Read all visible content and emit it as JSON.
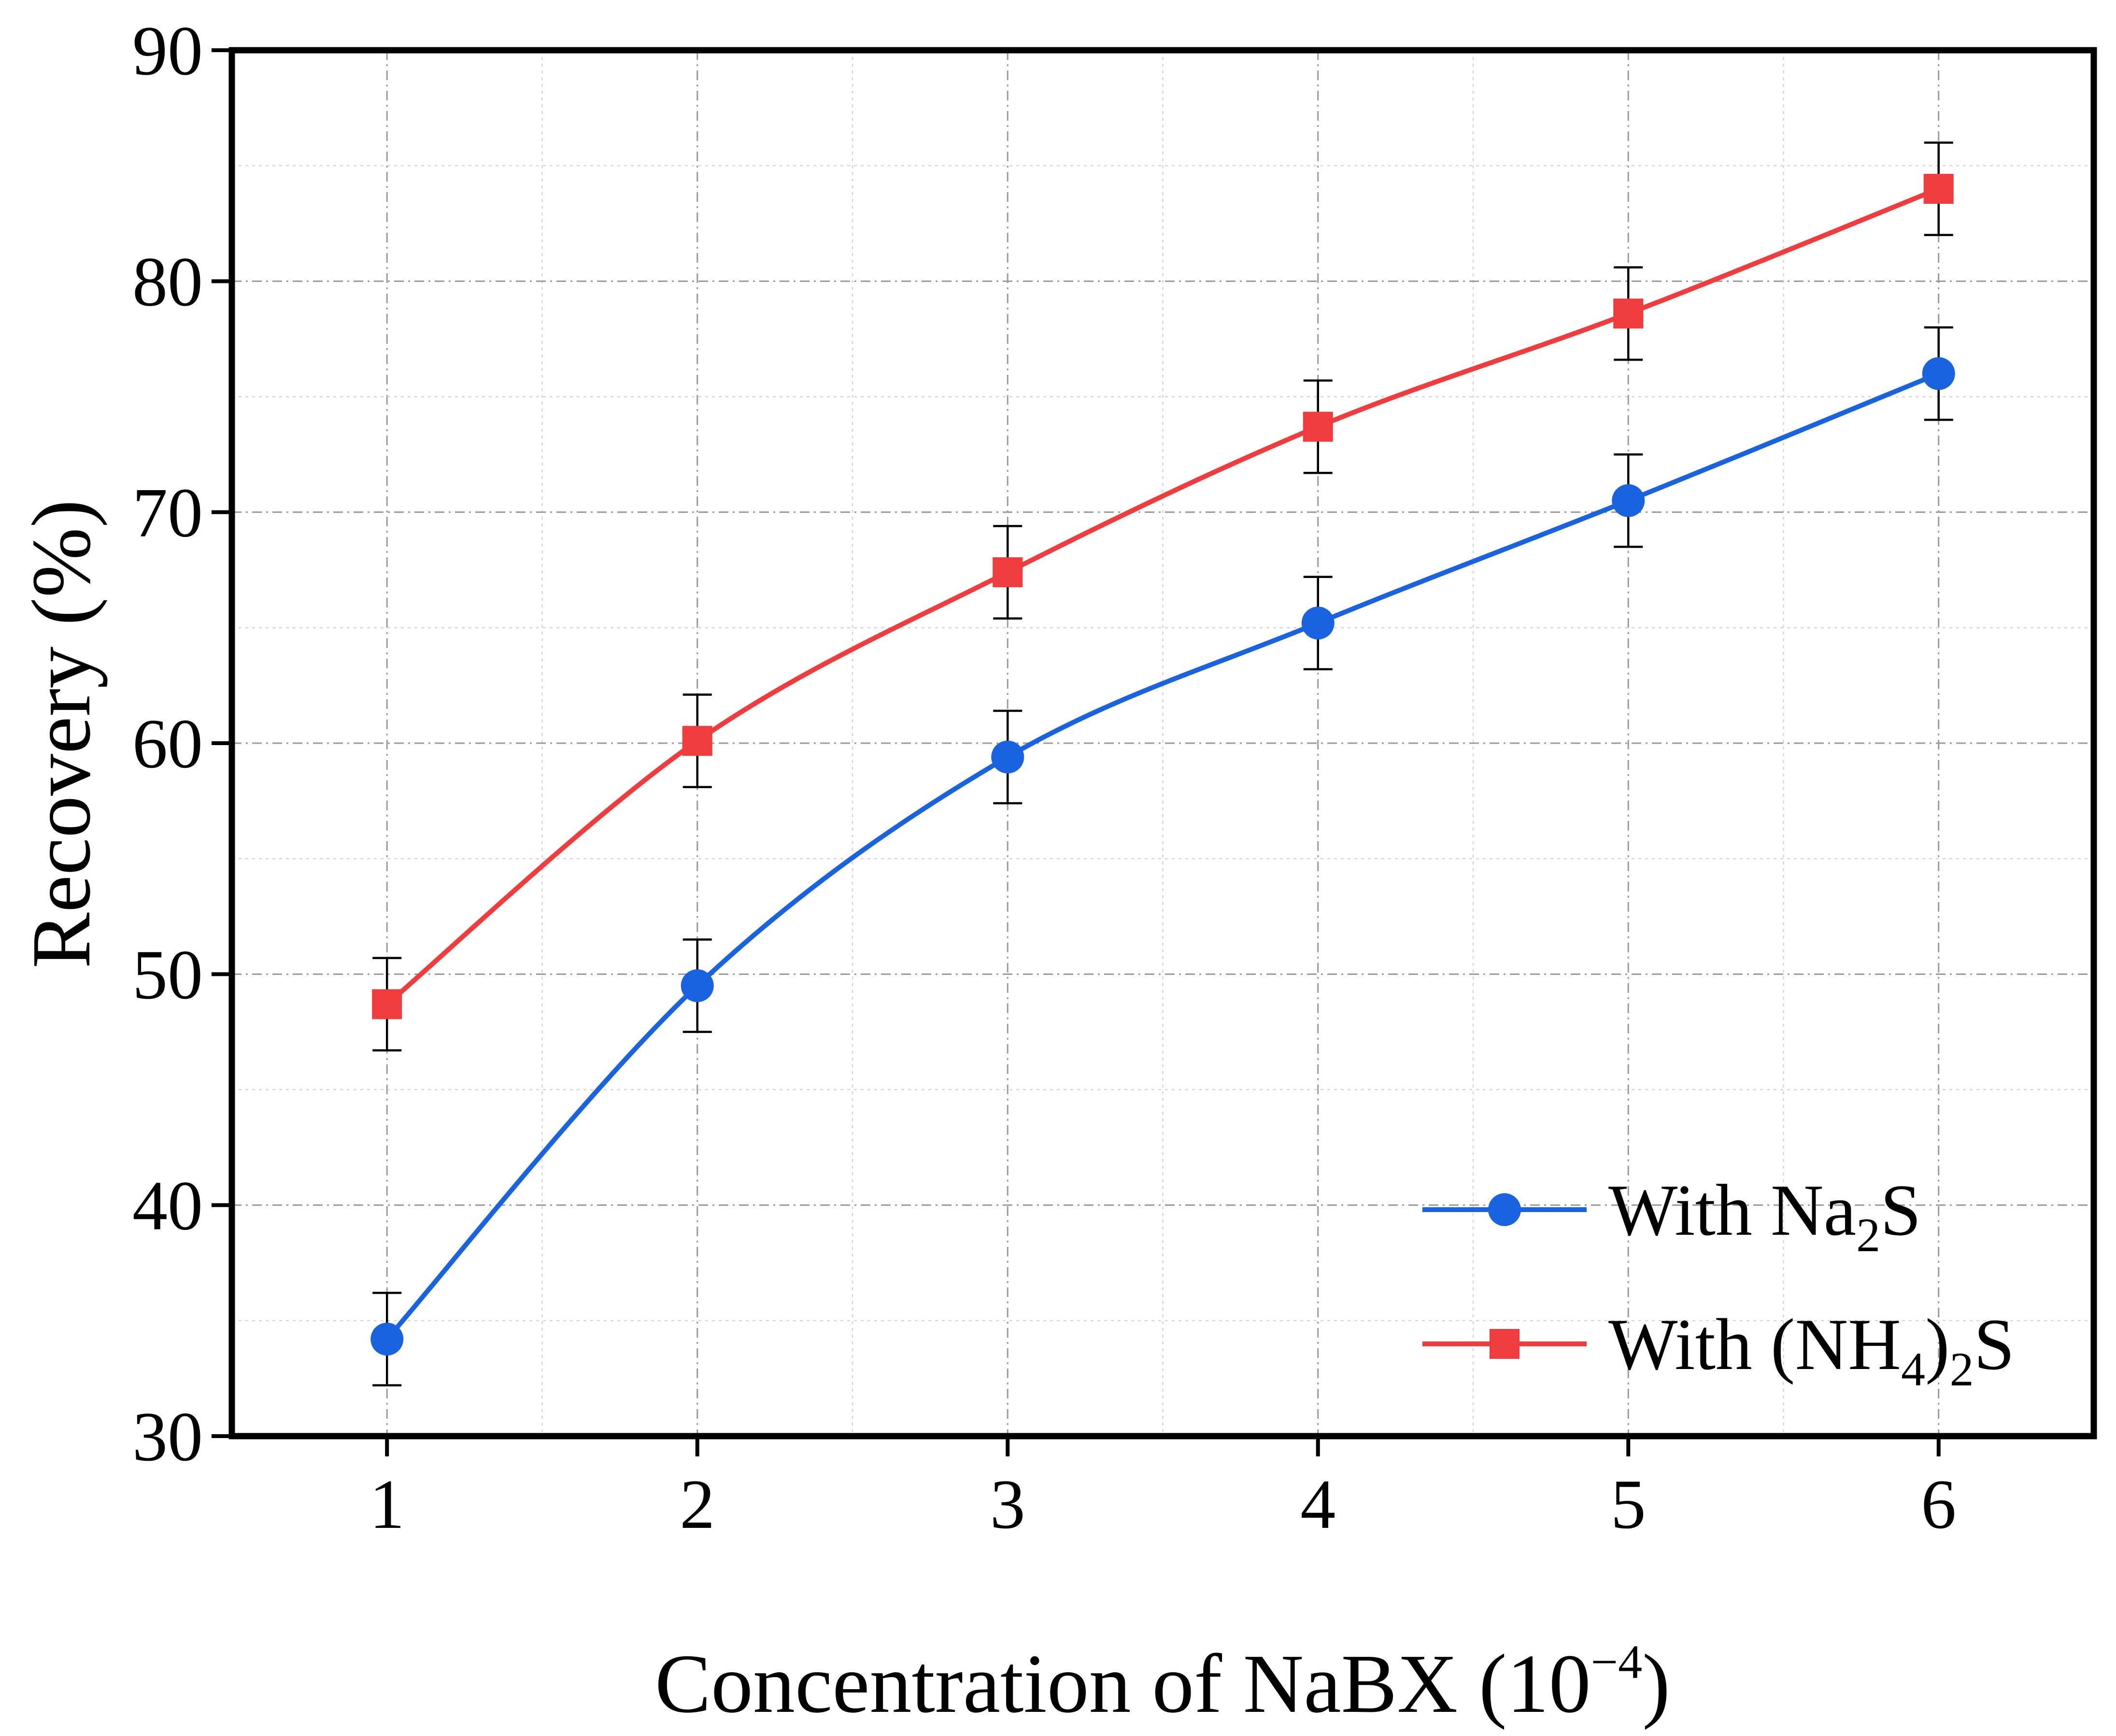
{
  "chart_data": {
    "type": "line",
    "title": "",
    "xlabel": "Concentration of NaBX (10",
    "xlabel_sup": "−4",
    "xlabel_close": ")",
    "ylabel": "Recovery (%)",
    "xlim": [
      0.5,
      6.5
    ],
    "ylim": [
      30,
      90
    ],
    "x": [
      1,
      2,
      3,
      4,
      5,
      6
    ],
    "xticks": [
      "1",
      "2",
      "3",
      "4",
      "5",
      "6"
    ],
    "yticks": [
      "30",
      "40",
      "50",
      "60",
      "70",
      "80",
      "90"
    ],
    "grid": true,
    "legend_position": "bottom-right",
    "series": [
      {
        "name": "With Na2S",
        "label_parts": [
          "With Na",
          "2",
          "S"
        ],
        "color": "#1a63e0",
        "marker": "circle",
        "values": [
          34.2,
          49.5,
          59.4,
          65.2,
          70.5,
          76.0
        ],
        "error": [
          2.0,
          2.0,
          2.0,
          2.0,
          2.0,
          2.0
        ]
      },
      {
        "name": "With (NH4)2S",
        "label_parts": [
          "With (NH",
          "4",
          ")",
          "2",
          "S"
        ],
        "color": "#f03c3c",
        "marker": "square",
        "values": [
          48.7,
          60.1,
          67.4,
          73.7,
          78.6,
          84.0
        ],
        "error": [
          2.0,
          2.0,
          2.0,
          2.0,
          2.0,
          2.0
        ]
      }
    ]
  }
}
